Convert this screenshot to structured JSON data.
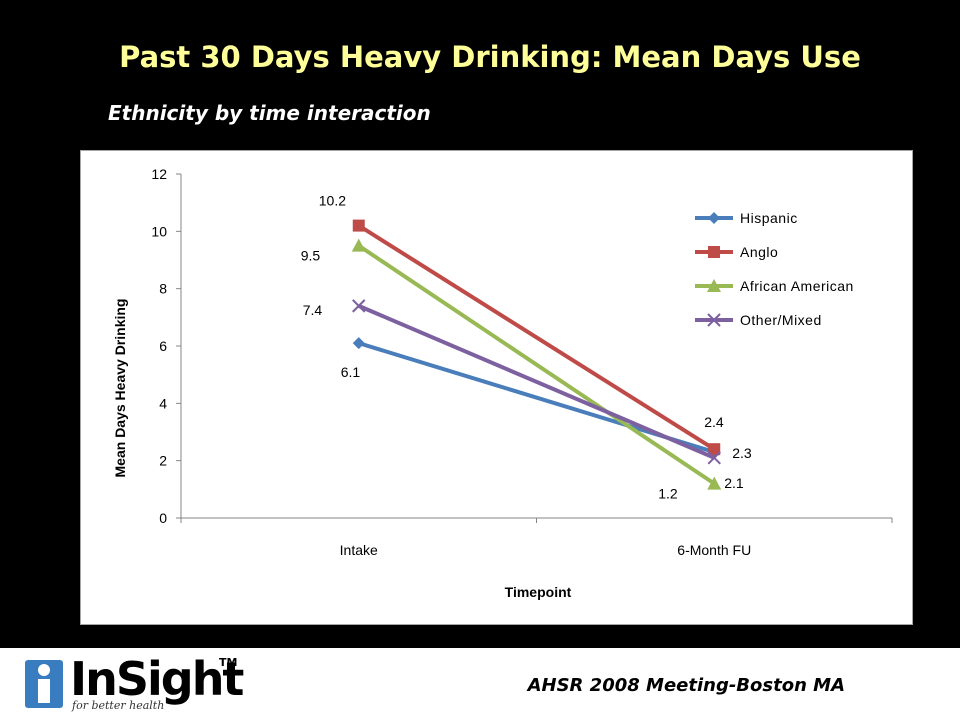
{
  "slide": {
    "title": "Past 30 Days Heavy Drinking: Mean Days Use",
    "subtitle": "Ethnicity by time interaction"
  },
  "footer": {
    "logo_text": "InSight",
    "logo_tm": "TM",
    "logo_tagline": "for better health",
    "caption": "AHSR 2008 Meeting-Boston MA"
  },
  "colors": {
    "background": "#000000",
    "title": "#ffff99",
    "hispanic": "#4a7ebb",
    "anglo": "#be4b48",
    "african_american": "#98b954",
    "other_mixed": "#7d60a0",
    "logo_blue": "#3a7cc0"
  },
  "chart_data": {
    "type": "line",
    "title": "",
    "xlabel": "Timepoint",
    "ylabel": "Mean Days Heavy Drinking",
    "categories": [
      "Intake",
      "6-Month FU"
    ],
    "ylim": [
      0,
      12
    ],
    "yticks": [
      0,
      2,
      4,
      6,
      8,
      10,
      12
    ],
    "grid": false,
    "legend_position": "right",
    "series": [
      {
        "name": "Hispanic",
        "values": [
          6.1,
          2.3
        ],
        "labels": [
          "6.1",
          "2.3"
        ],
        "marker": "diamond",
        "color": "#4a7ebb"
      },
      {
        "name": "Anglo",
        "values": [
          10.2,
          2.4
        ],
        "labels": [
          "10.2",
          "2.4"
        ],
        "marker": "square",
        "color": "#be4b48"
      },
      {
        "name": "African American",
        "values": [
          9.5,
          1.2
        ],
        "labels": [
          "9.5",
          "1.2"
        ],
        "marker": "triangle",
        "color": "#98b954"
      },
      {
        "name": "Other/Mixed",
        "values": [
          7.4,
          2.1
        ],
        "labels": [
          "7.4",
          "2.1"
        ],
        "marker": "x",
        "color": "#7d60a0"
      }
    ]
  }
}
